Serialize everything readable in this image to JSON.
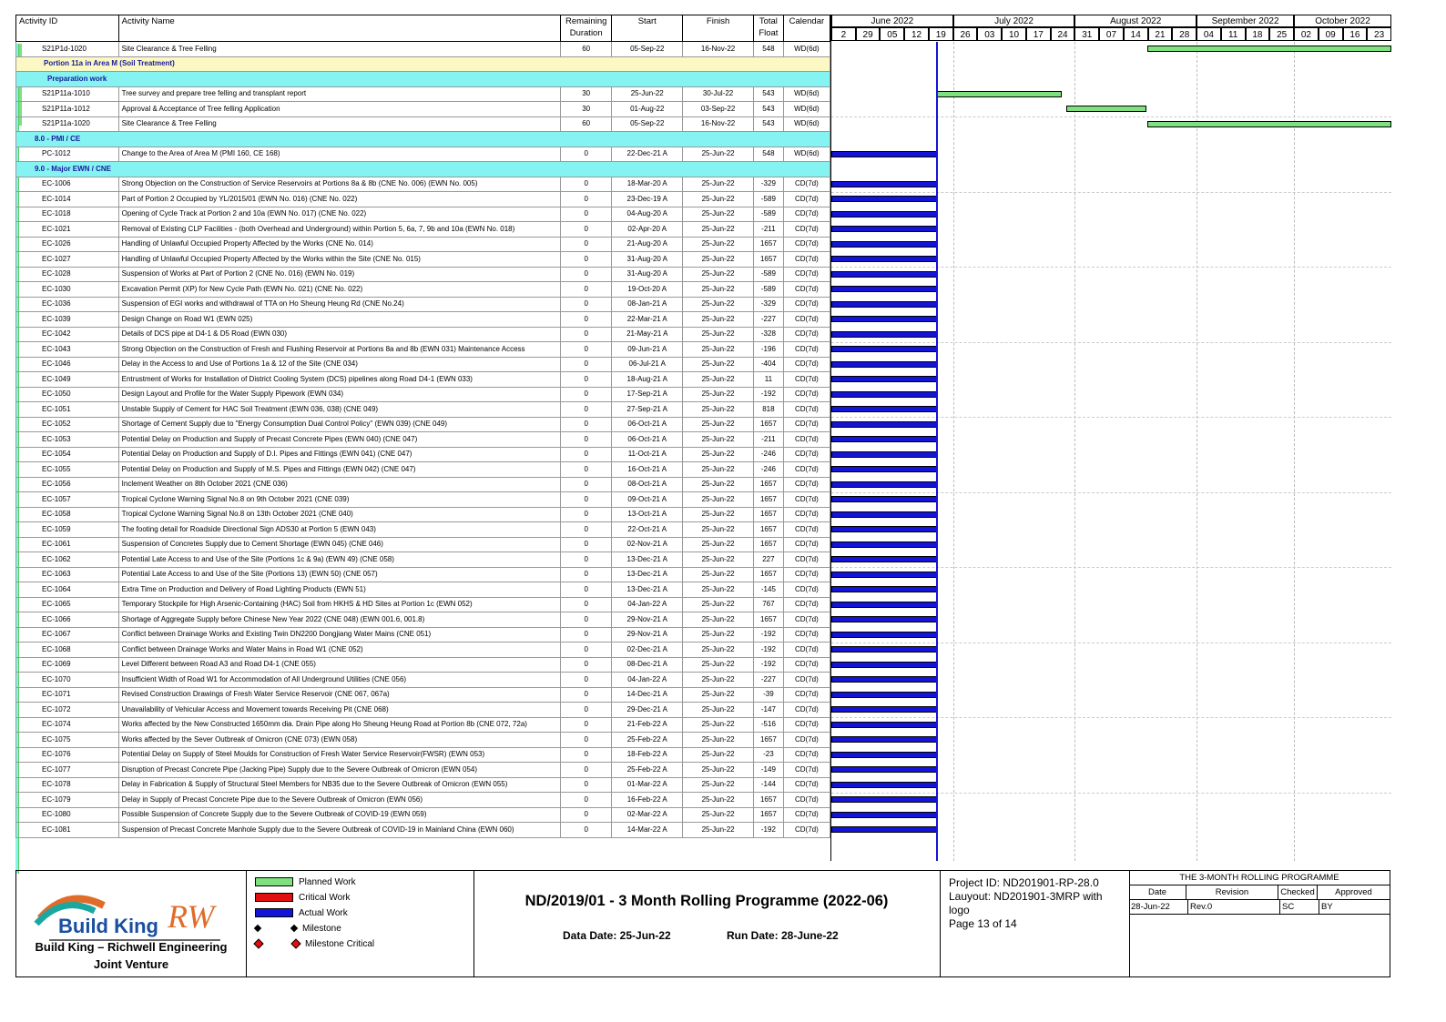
{
  "columns": [
    "Activity ID",
    "Activity Name",
    "Remaining Duration",
    "Start",
    "Finish",
    "Total Float",
    "Calendar"
  ],
  "timescale": {
    "months": [
      "June 2022",
      "July 2022",
      "August 2022",
      "September 2022",
      "October 2022"
    ],
    "days": [
      "2",
      "29",
      "05",
      "12",
      "19",
      "26",
      "03",
      "10",
      "17",
      "24",
      "31",
      "07",
      "14",
      "21",
      "28",
      "04",
      "11",
      "18",
      "25",
      "02",
      "09",
      "16",
      "23"
    ]
  },
  "rows": [
    {
      "type": "act",
      "id": "S21P1d-1020",
      "name": "Site Clearance & Tree Felling",
      "dur": "60",
      "start": "05-Sep-22",
      "finish": "16-Nov-22",
      "float": "548",
      "cal": "WD(6d)",
      "bar": "plan",
      "s": 0.565,
      "f": 1.0
    },
    {
      "type": "band1",
      "label": "Portion 11a in Area M   (Soil Treatment)"
    },
    {
      "type": "band2",
      "label": "Preparation work"
    },
    {
      "type": "act",
      "id": "S21P11a-1010",
      "name": "Tree survey and prepare tree felling and transplant report",
      "dur": "30",
      "start": "25-Jun-22",
      "finish": "30-Jul-22",
      "float": "543",
      "cal": "WD(6d)",
      "bar": "plan",
      "s": 0.189,
      "f": 0.411
    },
    {
      "type": "act",
      "id": "S21P11a-1012",
      "name": "Approval & Acceptance of Tree felling Application",
      "dur": "30",
      "start": "01-Aug-22",
      "finish": "03-Sep-22",
      "float": "543",
      "cal": "WD(6d)",
      "bar": "plan",
      "s": 0.419,
      "f": 0.562
    },
    {
      "type": "act",
      "id": "S21P11a-1020",
      "name": "Site Clearance & Tree Felling",
      "dur": "60",
      "start": "05-Sep-22",
      "finish": "16-Nov-22",
      "float": "543",
      "cal": "WD(6d)",
      "bar": "plan",
      "s": 0.565,
      "f": 1.0
    },
    {
      "type": "band2b",
      "label": "8.0 - PMI / CE"
    },
    {
      "type": "act",
      "id": "PC-1012",
      "name": "Change to the Area of Area M (PMI 160, CE 168)",
      "dur": "0",
      "start": "22-Dec-21 A",
      "finish": "25-Jun-22",
      "float": "548",
      "cal": "WD(6d)",
      "bar": "actual",
      "s": 0,
      "f": 0.189
    },
    {
      "type": "band2b",
      "label": "9.0 - Major EWN / CNE"
    },
    {
      "type": "act",
      "id": "EC-1006",
      "name": "Strong Objection on the Construction of Service Reservoirs at Portions 8a & 8b (CNE No. 006) (EWN No. 005)",
      "dur": "0",
      "start": "18-Mar-20 A",
      "finish": "25-Jun-22",
      "float": "-329",
      "cal": "CD(7d)",
      "bar": "actual",
      "s": 0,
      "f": 0.189
    },
    {
      "type": "act",
      "id": "EC-1014",
      "name": "Part of Portion 2 Occupied by YL/2015/01 (EWN No. 016) (CNE No. 022)",
      "dur": "0",
      "start": "23-Dec-19 A",
      "finish": "25-Jun-22",
      "float": "-589",
      "cal": "CD(7d)",
      "bar": "actual",
      "s": 0,
      "f": 0.189
    },
    {
      "type": "act",
      "id": "EC-1018",
      "name": "Opening of Cycle Track at Portion 2 and 10a (EWN No. 017) (CNE No. 022)",
      "dur": "0",
      "start": "04-Aug-20 A",
      "finish": "25-Jun-22",
      "float": "-589",
      "cal": "CD(7d)",
      "bar": "actual",
      "s": 0,
      "f": 0.189
    },
    {
      "type": "act",
      "id": "EC-1021",
      "name": "Removal of Existing CLP Facilities - (both Overhead and Underground) within Portion 5, 6a, 7, 9b and 10a (EWN No. 018)",
      "dur": "0",
      "start": "02-Apr-20 A",
      "finish": "25-Jun-22",
      "float": "-211",
      "cal": "CD(7d)",
      "bar": "actual",
      "s": 0,
      "f": 0.189
    },
    {
      "type": "act",
      "id": "EC-1026",
      "name": "Handling of Unlawful Occupied Property Affected by the Works (CNE No. 014)",
      "dur": "0",
      "start": "21-Aug-20 A",
      "finish": "25-Jun-22",
      "float": "1657",
      "cal": "CD(7d)",
      "bar": "actual",
      "s": 0,
      "f": 0.189
    },
    {
      "type": "act",
      "id": "EC-1027",
      "name": "Handling of Unlawful Occupied Property Affected by the Works within the Site (CNE No. 015)",
      "dur": "0",
      "start": "31-Aug-20 A",
      "finish": "25-Jun-22",
      "float": "1657",
      "cal": "CD(7d)",
      "bar": "actual",
      "s": 0,
      "f": 0.189
    },
    {
      "type": "act",
      "id": "EC-1028",
      "name": "Suspension of Works at Part of Portion 2  (CNE No. 016) (EWN No. 019)",
      "dur": "0",
      "start": "31-Aug-20 A",
      "finish": "25-Jun-22",
      "float": "-589",
      "cal": "CD(7d)",
      "bar": "actual",
      "s": 0,
      "f": 0.189
    },
    {
      "type": "act",
      "id": "EC-1030",
      "name": "Excavation Permit (XP) for New Cycle Path  (EWN No. 021) (CNE No. 022)",
      "dur": "0",
      "start": "19-Oct-20 A",
      "finish": "25-Jun-22",
      "float": "-589",
      "cal": "CD(7d)",
      "bar": "actual",
      "s": 0,
      "f": 0.189
    },
    {
      "type": "act",
      "id": "EC-1036",
      "name": "Suspension of EGI works and withdrawal of TTA on Ho Sheung Heung Rd (CNE No.24)",
      "dur": "0",
      "start": "08-Jan-21 A",
      "finish": "25-Jun-22",
      "float": "-329",
      "cal": "CD(7d)",
      "bar": "actual",
      "s": 0,
      "f": 0.189
    },
    {
      "type": "act",
      "id": "EC-1039",
      "name": "Design Change on Road W1 (EWN 025)",
      "dur": "0",
      "start": "22-Mar-21 A",
      "finish": "25-Jun-22",
      "float": "-227",
      "cal": "CD(7d)",
      "bar": "actual",
      "s": 0,
      "f": 0.189
    },
    {
      "type": "act",
      "id": "EC-1042",
      "name": "Details of DCS pipe at D4-1 & D5 Road (EWN 030)",
      "dur": "0",
      "start": "21-May-21 A",
      "finish": "25-Jun-22",
      "float": "-328",
      "cal": "CD(7d)",
      "bar": "actual",
      "s": 0,
      "f": 0.189
    },
    {
      "type": "act",
      "id": "EC-1043",
      "name": "Strong Objection on the Construction of Fresh and Flushing Reservoir at Portions 8a and 8b  (EWN 031) Maintenance Access",
      "dur": "0",
      "start": "09-Jun-21 A",
      "finish": "25-Jun-22",
      "float": "-196",
      "cal": "CD(7d)",
      "bar": "actual",
      "s": 0,
      "f": 0.189
    },
    {
      "type": "act",
      "id": "EC-1046",
      "name": "Delay in the Access to and Use of Portions 1a & 12 of the Site  (CNE 034)",
      "dur": "0",
      "start": "06-Jul-21 A",
      "finish": "25-Jun-22",
      "float": "-404",
      "cal": "CD(7d)",
      "bar": "actual",
      "s": 0,
      "f": 0.189
    },
    {
      "type": "act",
      "id": "EC-1049",
      "name": "Entrustment of Works for Installation of District Cooling System (DCS) pipelines along Road D4-1 (EWN 033)",
      "dur": "0",
      "start": "18-Aug-21 A",
      "finish": "25-Jun-22",
      "float": "11",
      "cal": "CD(7d)",
      "bar": "actual",
      "s": 0,
      "f": 0.189
    },
    {
      "type": "act",
      "id": "EC-1050",
      "name": "Design Layout and Profile for the Water Supply Pipework (EWN 034)",
      "dur": "0",
      "start": "17-Sep-21 A",
      "finish": "25-Jun-22",
      "float": "-192",
      "cal": "CD(7d)",
      "bar": "actual",
      "s": 0,
      "f": 0.189
    },
    {
      "type": "act",
      "id": "EC-1051",
      "name": "Unstable Supply of Cement for HAC Soil Treatment (EWN 036, 038) (CNE 049)",
      "dur": "0",
      "start": "27-Sep-21 A",
      "finish": "25-Jun-22",
      "float": "818",
      "cal": "CD(7d)",
      "bar": "actual",
      "s": 0,
      "f": 0.189
    },
    {
      "type": "act",
      "id": "EC-1052",
      "name": "Shortage of Cement Supply due to \"Energy Consumption Dual Control Policy\" (EWN 039) (CNE 049)",
      "dur": "0",
      "start": "06-Oct-21 A",
      "finish": "25-Jun-22",
      "float": "1657",
      "cal": "CD(7d)",
      "bar": "actual",
      "s": 0,
      "f": 0.189
    },
    {
      "type": "act",
      "id": "EC-1053",
      "name": "Potential Delay on Production and Supply of Precast Concrete Pipes (EWN 040) (CNE 047)",
      "dur": "0",
      "start": "06-Oct-21 A",
      "finish": "25-Jun-22",
      "float": "-211",
      "cal": "CD(7d)",
      "bar": "actual",
      "s": 0,
      "f": 0.189
    },
    {
      "type": "act",
      "id": "EC-1054",
      "name": "Potential Delay on Production and Supply of D.I. Pipes and Fittings (EWN 041) (CNE 047)",
      "dur": "0",
      "start": "11-Oct-21 A",
      "finish": "25-Jun-22",
      "float": "-246",
      "cal": "CD(7d)",
      "bar": "actual",
      "s": 0,
      "f": 0.189
    },
    {
      "type": "act",
      "id": "EC-1055",
      "name": "Potential Delay on Production and Supply of M.S. Pipes and Fittings (EWN 042) (CNE 047)",
      "dur": "0",
      "start": "16-Oct-21 A",
      "finish": "25-Jun-22",
      "float": "-246",
      "cal": "CD(7d)",
      "bar": "actual",
      "s": 0,
      "f": 0.189
    },
    {
      "type": "act",
      "id": "EC-1056",
      "name": "Inclement Weather on 8th October 2021 (CNE 036)",
      "dur": "0",
      "start": "08-Oct-21 A",
      "finish": "25-Jun-22",
      "float": "1657",
      "cal": "CD(7d)",
      "bar": "actual",
      "s": 0,
      "f": 0.189
    },
    {
      "type": "act",
      "id": "EC-1057",
      "name": "Tropical Cyclone Warning Signal No.8 on 9th October 2021 (CNE 039)",
      "dur": "0",
      "start": "09-Oct-21 A",
      "finish": "25-Jun-22",
      "float": "1657",
      "cal": "CD(7d)",
      "bar": "actual",
      "s": 0,
      "f": 0.189
    },
    {
      "type": "act",
      "id": "EC-1058",
      "name": "Tropical Cyclone Warning Signal No.8 on 13th October 2021 (CNE 040)",
      "dur": "0",
      "start": "13-Oct-21 A",
      "finish": "25-Jun-22",
      "float": "1657",
      "cal": "CD(7d)",
      "bar": "actual",
      "s": 0,
      "f": 0.189
    },
    {
      "type": "act",
      "id": "EC-1059",
      "name": "The footing detail for Roadside Directional Sign ADS30 at Portion 5 (EWN 043)",
      "dur": "0",
      "start": "22-Oct-21 A",
      "finish": "25-Jun-22",
      "float": "1657",
      "cal": "CD(7d)",
      "bar": "actual",
      "s": 0,
      "f": 0.189
    },
    {
      "type": "act",
      "id": "EC-1061",
      "name": "Suspension of Concretes Supply due to Cement Shortage (EWN 045) (CNE 046)",
      "dur": "0",
      "start": "02-Nov-21 A",
      "finish": "25-Jun-22",
      "float": "1657",
      "cal": "CD(7d)",
      "bar": "actual",
      "s": 0,
      "f": 0.189
    },
    {
      "type": "act",
      "id": "EC-1062",
      "name": "Potential Late Access to and Use of the Site (Portions 1c & 9a) (EWN 49) (CNE 058)",
      "dur": "0",
      "start": "13-Dec-21 A",
      "finish": "25-Jun-22",
      "float": "227",
      "cal": "CD(7d)",
      "bar": "actual",
      "s": 0,
      "f": 0.189
    },
    {
      "type": "act",
      "id": "EC-1063",
      "name": "Potential Late Access to and Use of the Site (Portions 13) (EWN 50) (CNE 057)",
      "dur": "0",
      "start": "13-Dec-21 A",
      "finish": "25-Jun-22",
      "float": "1657",
      "cal": "CD(7d)",
      "bar": "actual",
      "s": 0,
      "f": 0.189
    },
    {
      "type": "act",
      "id": "EC-1064",
      "name": "Extra Time on Production and Delivery of Road Lighting Products  (EWN 51)",
      "dur": "0",
      "start": "13-Dec-21 A",
      "finish": "25-Jun-22",
      "float": "-145",
      "cal": "CD(7d)",
      "bar": "actual",
      "s": 0,
      "f": 0.189
    },
    {
      "type": "act",
      "id": "EC-1065",
      "name": "Temporary Stockpile for High Arsenic-Containing (HAC) Soil from HKHS & HD Sites at Portion 1c (EWN 052)",
      "dur": "0",
      "start": "04-Jan-22 A",
      "finish": "25-Jun-22",
      "float": "767",
      "cal": "CD(7d)",
      "bar": "actual",
      "s": 0,
      "f": 0.189
    },
    {
      "type": "act",
      "id": "EC-1066",
      "name": "Shortage of Aggregate Supply before Chinese New Year 2022 (CNE 048) (EWN 001.6, 001.8)",
      "dur": "0",
      "start": "29-Nov-21 A",
      "finish": "25-Jun-22",
      "float": "1657",
      "cal": "CD(7d)",
      "bar": "actual",
      "s": 0,
      "f": 0.189
    },
    {
      "type": "act",
      "id": "EC-1067",
      "name": "Conflict between Drainage Works and Existing Twin DN2200 Dongjiang Water Mains (CNE 051)",
      "dur": "0",
      "start": "29-Nov-21 A",
      "finish": "25-Jun-22",
      "float": "-192",
      "cal": "CD(7d)",
      "bar": "actual",
      "s": 0,
      "f": 0.189
    },
    {
      "type": "act",
      "id": "EC-1068",
      "name": "Conflict between Drainage Works and Water Mains in Road W1 (CNE 052)",
      "dur": "0",
      "start": "02-Dec-21 A",
      "finish": "25-Jun-22",
      "float": "-192",
      "cal": "CD(7d)",
      "bar": "actual",
      "s": 0,
      "f": 0.189
    },
    {
      "type": "act",
      "id": "EC-1069",
      "name": "Level Different between Road A3 and Road D4-1 (CNE 055)",
      "dur": "0",
      "start": "08-Dec-21 A",
      "finish": "25-Jun-22",
      "float": "-192",
      "cal": "CD(7d)",
      "bar": "actual",
      "s": 0,
      "f": 0.189
    },
    {
      "type": "act",
      "id": "EC-1070",
      "name": "Insufficient Width of Road W1 for Accommodation of All Underground Utilities (CNE 056)",
      "dur": "0",
      "start": "04-Jan-22 A",
      "finish": "25-Jun-22",
      "float": "-227",
      "cal": "CD(7d)",
      "bar": "actual",
      "s": 0,
      "f": 0.189
    },
    {
      "type": "act",
      "id": "EC-1071",
      "name": "Revised Construction Drawings of Fresh Water Service Reservoir (CNE 067, 067a)",
      "dur": "0",
      "start": "14-Dec-21 A",
      "finish": "25-Jun-22",
      "float": "-39",
      "cal": "CD(7d)",
      "bar": "actual",
      "s": 0,
      "f": 0.189
    },
    {
      "type": "act",
      "id": "EC-1072",
      "name": "Unavailability of Vehicular Access and Movement towards Receiving Pit (CNE 068)",
      "dur": "0",
      "start": "29-Dec-21 A",
      "finish": "25-Jun-22",
      "float": "-147",
      "cal": "CD(7d)",
      "bar": "actual",
      "s": 0,
      "f": 0.189
    },
    {
      "type": "act",
      "id": "EC-1074",
      "name": "Works affected by the New Constructed 1650mm dia. Drain Pipe along Ho Sheung Heung Road at Portion 8b (CNE 072, 72a)",
      "dur": "0",
      "start": "21-Feb-22 A",
      "finish": "25-Jun-22",
      "float": "-516",
      "cal": "CD(7d)",
      "bar": "actual",
      "s": 0,
      "f": 0.189
    },
    {
      "type": "act",
      "id": "EC-1075",
      "name": "Works affected by the Sever Outbreak of Omicron (CNE 073) (EWN 058)",
      "dur": "0",
      "start": "25-Feb-22 A",
      "finish": "25-Jun-22",
      "float": "1657",
      "cal": "CD(7d)",
      "bar": "actual",
      "s": 0,
      "f": 0.189
    },
    {
      "type": "act",
      "id": "EC-1076",
      "name": "Potential Delay on Supply of Steel Moulds for Construction of Fresh Water Service Reservoir(FWSR) (EWN 053)",
      "dur": "0",
      "start": "18-Feb-22 A",
      "finish": "25-Jun-22",
      "float": "-23",
      "cal": "CD(7d)",
      "bar": "actual",
      "s": 0,
      "f": 0.189
    },
    {
      "type": "act",
      "id": "EC-1077",
      "name": "Disruption of Precast Concrete Pipe (Jacking Pipe) Supply due to the Severe Outbreak of Omicron (EWN 054)",
      "dur": "0",
      "start": "25-Feb-22 A",
      "finish": "25-Jun-22",
      "float": "-149",
      "cal": "CD(7d)",
      "bar": "actual",
      "s": 0,
      "f": 0.189
    },
    {
      "type": "act",
      "id": "EC-1078",
      "name": "Delay in Fabrication & Supply of Structural Steel Members for NB35 due to the Severe Outbreak of Omicron (EWN 055)",
      "dur": "0",
      "start": "01-Mar-22 A",
      "finish": "25-Jun-22",
      "float": "-144",
      "cal": "CD(7d)",
      "bar": "actual",
      "s": 0,
      "f": 0.189
    },
    {
      "type": "act",
      "id": "EC-1079",
      "name": "Delay in Supply of Precast Concrete Pipe due to the Severe Outbreak of Omicron (EWN 056)",
      "dur": "0",
      "start": "16-Feb-22 A",
      "finish": "25-Jun-22",
      "float": "1657",
      "cal": "CD(7d)",
      "bar": "actual",
      "s": 0,
      "f": 0.189
    },
    {
      "type": "act",
      "id": "EC-1080",
      "name": "Possible Suspension of Concrete Supply due to the Severe Outbreak of COVID-19 (EWN 059)",
      "dur": "0",
      "start": "02-Mar-22 A",
      "finish": "25-Jun-22",
      "float": "1657",
      "cal": "CD(7d)",
      "bar": "actual",
      "s": 0,
      "f": 0.189
    },
    {
      "type": "act",
      "id": "EC-1081",
      "name": "Suspension of Precast Concrete Manhole Supply due to the Severe Outbreak of COVID-19 in Mainland China (EWN 060)",
      "dur": "0",
      "start": "14-Mar-22 A",
      "finish": "25-Jun-22",
      "float": "-192",
      "cal": "CD(7d)",
      "bar": "actual",
      "s": 0,
      "f": 0.189
    }
  ],
  "footer": {
    "logo_text": "Build King",
    "logo_rw": "RW",
    "company_line1": "Build King – Richwell Engineering",
    "company_line2": "Joint Venture",
    "legend": {
      "planned": "Planned Work",
      "critical": "Critical Work",
      "actual": "Actual Work",
      "milestone": "Milestone",
      "milestone_critical": "Milestone Critical"
    },
    "title": "ND/2019/01 - 3 Month Rolling Programme (2022-06)",
    "data_date": "Data Date: 25-Jun-22",
    "run_date": "Run Date: 28-June-22",
    "project_id": "Project ID: ND201901-RP-28.0",
    "layout": "Lauyout: ND201901-3MRP with logo",
    "page": "Page 13 of 14",
    "rev_title": "THE 3-MONTH ROLLING PROGRAMME",
    "rev_headers": [
      "Date",
      "Revision",
      "Checked",
      "Approved"
    ],
    "rev_row": [
      "28-Jun-22",
      "Rev.0",
      "SC",
      "BY"
    ]
  },
  "colors": {
    "planned": "#7fe07f",
    "critical": "#e01010",
    "actual": "#1414d8",
    "band_yellow": "#fbf8c4",
    "band_cyan": "#86f3f3"
  }
}
